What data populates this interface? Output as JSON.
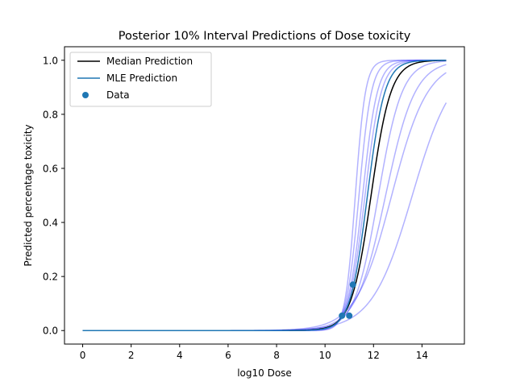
{
  "chart_data": {
    "type": "line",
    "title": "Posterior 10% Interval Predictions of Dose toxicity",
    "xlabel": "log10 Dose",
    "ylabel": "Predicted percentage toxicity",
    "xlim": [
      -0.75,
      15.75
    ],
    "ylim": [
      -0.05,
      1.05
    ],
    "xticks": [
      0,
      2,
      4,
      6,
      8,
      10,
      12,
      14
    ],
    "yticks": [
      0.0,
      0.2,
      0.4,
      0.6,
      0.8,
      1.0
    ],
    "xtick_labels": [
      "0",
      "2",
      "4",
      "6",
      "8",
      "10",
      "12",
      "14"
    ],
    "ytick_labels": [
      "0.0",
      "0.2",
      "0.4",
      "0.6",
      "0.8",
      "1.0"
    ],
    "grid": false,
    "legend_position": "upper-left",
    "legend": [
      {
        "label": "Median Prediction",
        "kind": "line",
        "color": "#000000"
      },
      {
        "label": "MLE Prediction",
        "kind": "line",
        "color": "#1f77b4"
      },
      {
        "label": "Data",
        "kind": "marker",
        "color": "#1f77b4"
      }
    ],
    "colors": {
      "median": "#000000",
      "mle": "#1f77b4",
      "interval": "#0000ff",
      "data": "#1f77b4"
    },
    "median_curve": {
      "midpoint": 11.9,
      "slope": 2.45
    },
    "mle_curve": {
      "midpoint": 11.75,
      "slope": 2.8
    },
    "interval_curves": [
      {
        "midpoint": 11.25,
        "slope": 4.8
      },
      {
        "midpoint": 11.4,
        "slope": 3.9
      },
      {
        "midpoint": 11.55,
        "slope": 3.3
      },
      {
        "midpoint": 11.65,
        "slope": 3.0
      },
      {
        "midpoint": 12.2,
        "slope": 2.05
      },
      {
        "midpoint": 12.5,
        "slope": 1.65
      },
      {
        "midpoint": 12.75,
        "slope": 1.35
      },
      {
        "midpoint": 13.6,
        "slope": 1.2
      }
    ],
    "data_points": [
      {
        "x": 10.7,
        "y": 0.055
      },
      {
        "x": 11.0,
        "y": 0.055
      },
      {
        "x": 11.15,
        "y": 0.17
      }
    ]
  }
}
